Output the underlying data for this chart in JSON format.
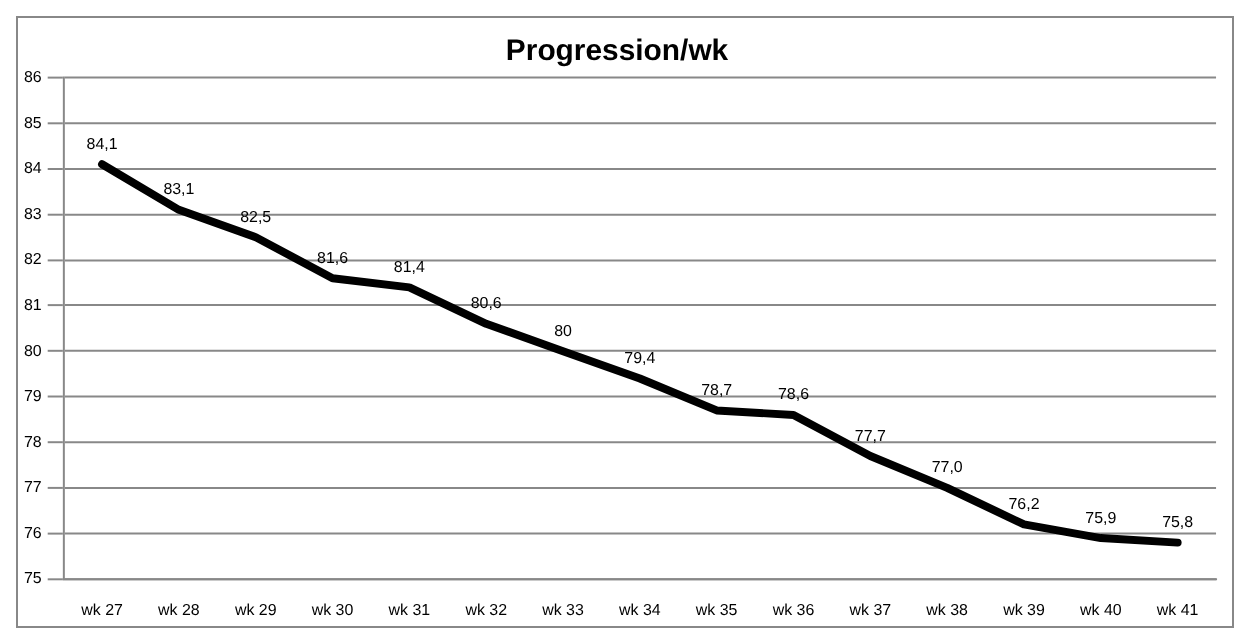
{
  "chart_data": {
    "type": "line",
    "title": "Progression/wk",
    "categories": [
      "wk 27",
      "wk 28",
      "wk 29",
      "wk 30",
      "wk 31",
      "wk 32",
      "wk 33",
      "wk 34",
      "wk 35",
      "wk 36",
      "wk 37",
      "wk 38",
      "wk 39",
      "wk 40",
      "wk 41"
    ],
    "series": [
      {
        "color": "#000000",
        "values": [
          84.1,
          83.1,
          82.5,
          81.6,
          81.4,
          80.6,
          80,
          79.4,
          78.7,
          78.6,
          77.7,
          77.0,
          76.2,
          75.9,
          75.8
        ],
        "value_labels": [
          "84,1",
          "83,1",
          "82,5",
          "81,6",
          "81,4",
          "80,6",
          "80",
          "79,4",
          "78,7",
          "78,6",
          "77,7",
          "77,0",
          "76,2",
          "75,9",
          "75,8"
        ]
      }
    ],
    "ylim": [
      75,
      86
    ],
    "yticks": [
      75,
      76,
      77,
      78,
      79,
      80,
      81,
      82,
      83,
      84,
      85,
      86
    ],
    "grid": "y",
    "legend": false,
    "marker": "none",
    "line_style": "solid"
  }
}
